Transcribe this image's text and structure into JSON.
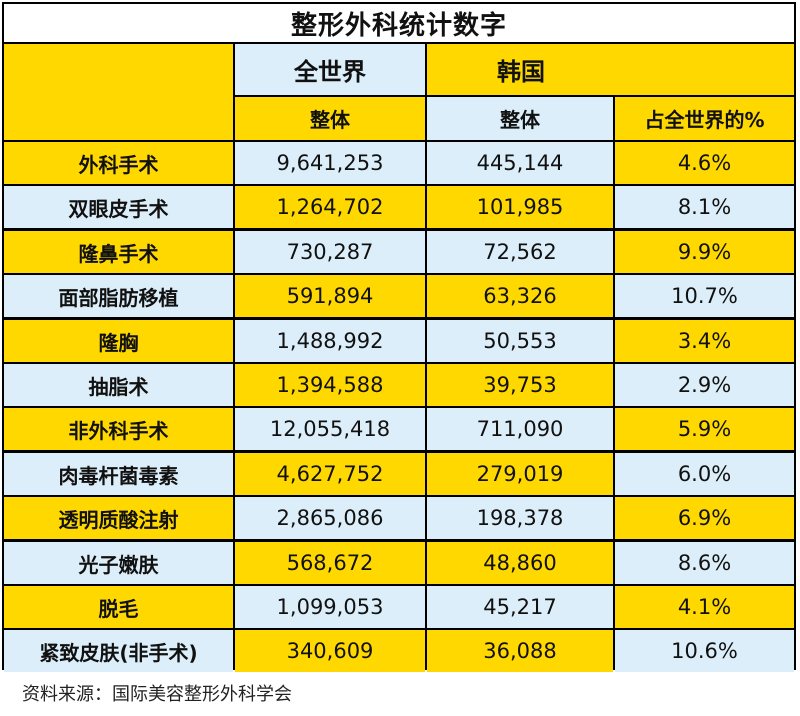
{
  "title": "整形外科统计数字",
  "header": {
    "world": "全世界",
    "korea": "韩国",
    "world_total": "整体",
    "korea_total": "整体",
    "korea_share": "占全世界的%"
  },
  "rows": [
    {
      "name": "外科手术",
      "world": "9,641,253",
      "korea": "445,144",
      "pct": "4.6%"
    },
    {
      "name": "双眼皮手术",
      "world": "1,264,702",
      "korea": "101,985",
      "pct": "8.1%"
    },
    {
      "name": "隆鼻手术",
      "world": "730,287",
      "korea": "72,562",
      "pct": "9.9%"
    },
    {
      "name": "面部脂肪移植",
      "world": "591,894",
      "korea": "63,326",
      "pct": "10.7%"
    },
    {
      "name": "隆胸",
      "world": "1,488,992",
      "korea": "50,553",
      "pct": "3.4%"
    },
    {
      "name": "抽脂术",
      "world": "1,394,588",
      "korea": "39,753",
      "pct": "2.9%"
    },
    {
      "name": "非外科手术",
      "world": "12,055,418",
      "korea": "711,090",
      "pct": "5.9%"
    },
    {
      "name": "肉毒杆菌毒素",
      "world": "4,627,752",
      "korea": "279,019",
      "pct": "6.0%"
    },
    {
      "name": "透明质酸注射",
      "world": "2,865,086",
      "korea": "198,378",
      "pct": "6.9%"
    },
    {
      "name": "光子嫩肤",
      "world": "568,672",
      "korea": "48,860",
      "pct": "8.6%"
    },
    {
      "name": "脱毛",
      "world": "1,099,053",
      "korea": "45,217",
      "pct": "4.1%"
    },
    {
      "name": "紧致皮肤(非手术)",
      "world": "340,609",
      "korea": "36,088",
      "pct": "10.6%"
    }
  ],
  "source": "资料来源：国际美容整形外科学会",
  "colors": {
    "yellow": "#FFD800",
    "light_blue": "#DCEEF9",
    "border": "#000000"
  }
}
